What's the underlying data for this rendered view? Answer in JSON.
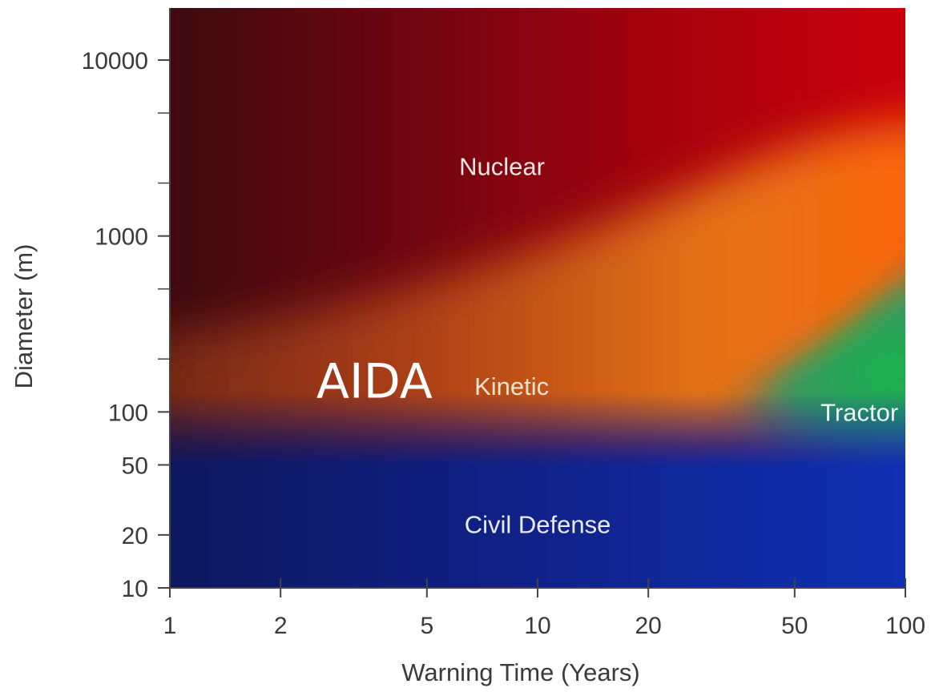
{
  "chart_data": {
    "type": "heatmap",
    "title": "",
    "xlabel": "Warning Time (Years)",
    "ylabel": "Diameter (m)",
    "x_scale": "log",
    "y_scale": "log",
    "xlim": [
      1,
      100
    ],
    "ylim": [
      10,
      20000
    ],
    "x_ticks": [
      {
        "value": 1,
        "label": "1"
      },
      {
        "value": 2,
        "label": "2"
      },
      {
        "value": 5,
        "label": "5"
      },
      {
        "value": 10,
        "label": "10"
      },
      {
        "value": 20,
        "label": "20"
      },
      {
        "value": 50,
        "label": "50"
      },
      {
        "value": 100,
        "label": "100"
      }
    ],
    "y_ticks": [
      {
        "value": 10,
        "label": "10"
      },
      {
        "value": 20,
        "label": "20"
      },
      {
        "value": 50,
        "label": "50"
      },
      {
        "value": 100,
        "label": "100"
      },
      {
        "value": 1000,
        "label": "1000"
      },
      {
        "value": 10000,
        "label": "10000"
      }
    ],
    "y_minor_ticks": [
      200,
      500,
      2000,
      5000
    ],
    "regions": [
      {
        "name": "Nuclear",
        "label_x": 8,
        "label_y": 2500,
        "color": "#b5000e",
        "text_color": "#f4e6e0"
      },
      {
        "name": "Kinetic",
        "label_x": 8.5,
        "label_y": 140,
        "color": "#e07a10",
        "text_color": "#f6e3cf"
      },
      {
        "name": "Tractor",
        "label_x": 75,
        "label_y": 100,
        "color": "#1aa86a",
        "text_color": "#eaf7ef"
      },
      {
        "name": "Civil Defense",
        "label_x": 10,
        "label_y": 23,
        "color": "#1230a8",
        "text_color": "#e8ecf8"
      }
    ],
    "annotations": [
      {
        "text": "AIDA",
        "x": 3.6,
        "y": 150,
        "color": "#ffffff"
      }
    ],
    "grid": false
  }
}
